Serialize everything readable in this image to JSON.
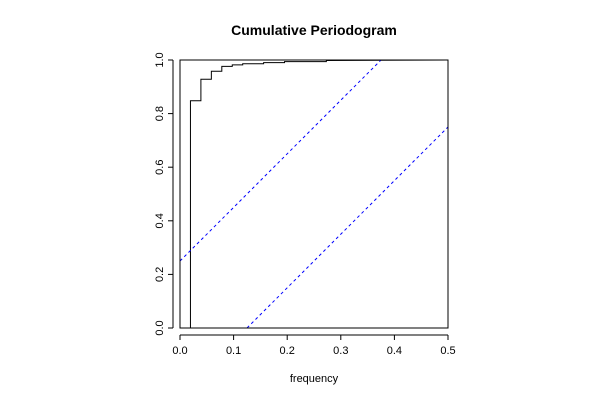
{
  "chart_data": {
    "type": "line",
    "title": "Cumulative Periodogram",
    "xlabel": "frequency",
    "ylabel": "",
    "xlim": [
      0,
      0.5
    ],
    "ylim": [
      0,
      1
    ],
    "x_ticks": [
      "0.0",
      "0.1",
      "0.2",
      "0.3",
      "0.4",
      "0.5"
    ],
    "y_ticks": [
      "0.0",
      "0.2",
      "0.4",
      "0.6",
      "0.8",
      "1.0"
    ],
    "grid": false,
    "legend": "none",
    "series": [
      {
        "style": "step",
        "color": "#000000",
        "x": [
          0.0195,
          0.0195,
          0.039,
          0.039,
          0.0585,
          0.0585,
          0.078,
          0.078,
          0.0975,
          0.0975,
          0.117,
          0.117,
          0.156,
          0.156,
          0.195,
          0.195,
          0.273,
          0.273,
          0.5
        ],
        "y": [
          0.0,
          0.848,
          0.848,
          0.928,
          0.928,
          0.958,
          0.958,
          0.976,
          0.976,
          0.982,
          0.982,
          0.986,
          0.986,
          0.99,
          0.99,
          0.994,
          0.994,
          0.998,
          1.0
        ]
      },
      {
        "style": "dashed",
        "color": "#0000ff",
        "x": [
          0.0,
          0.375
        ],
        "y": [
          0.25,
          1.0
        ]
      },
      {
        "style": "dashed",
        "color": "#0000ff",
        "x": [
          0.125,
          0.5
        ],
        "y": [
          0.0,
          0.75
        ]
      }
    ]
  }
}
